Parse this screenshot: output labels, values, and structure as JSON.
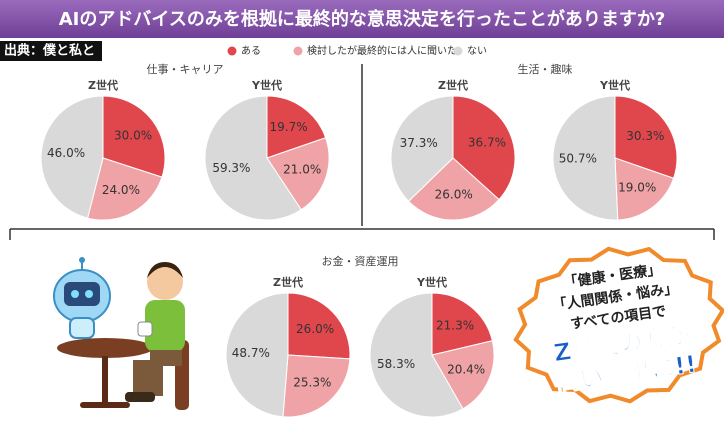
{
  "title": "AIのアドバイスのみを根拠に最終的な意思決定を行ったことがありますか?",
  "source": "出典：僕と私と",
  "legend": [
    {
      "name": "ある",
      "color": "#e0474c"
    },
    {
      "name": "検討したが最終的には人に聞いた",
      "color": "#f0a3a6"
    },
    {
      "name": "ない",
      "color": "#d9d9d9"
    }
  ],
  "chart_data": [
    {
      "type": "pie",
      "title": "仕事・キャリア",
      "series": [
        {
          "name": "Z世代",
          "values": [
            30.0,
            24.0,
            46.0
          ],
          "value_labels": [
            "30.0%",
            "24.0%",
            "46.0%"
          ]
        },
        {
          "name": "Y世代",
          "values": [
            19.7,
            21.0,
            59.3
          ],
          "value_labels": [
            "19.7%",
            "21.0%",
            "59.3%"
          ]
        }
      ]
    },
    {
      "type": "pie",
      "title": "生活・趣味",
      "series": [
        {
          "name": "Z世代",
          "values": [
            36.7,
            26.0,
            37.3
          ],
          "value_labels": [
            "36.7%",
            "26.0%",
            "37.3%"
          ]
        },
        {
          "name": "Y世代",
          "values": [
            30.3,
            19.0,
            50.7
          ],
          "value_labels": [
            "30.3%",
            "19.0%",
            "50.7%"
          ]
        }
      ]
    },
    {
      "type": "pie",
      "title": "お金・資産運用",
      "series": [
        {
          "name": "Z世代",
          "values": [
            26.0,
            25.3,
            48.7
          ],
          "value_labels": [
            "26.0%",
            "25.3%",
            "48.7%"
          ]
        },
        {
          "name": "Y世代",
          "values": [
            21.3,
            20.4,
            58.3
          ],
          "value_labels": [
            "21.3%",
            "20.4%",
            "58.3%"
          ]
        }
      ]
    }
  ],
  "annotation": [
    "「健康・医療」",
    "「人間関係・悩み」",
    "すべての項目で",
    "Z世代の方が",
    "高い結果に!!"
  ]
}
